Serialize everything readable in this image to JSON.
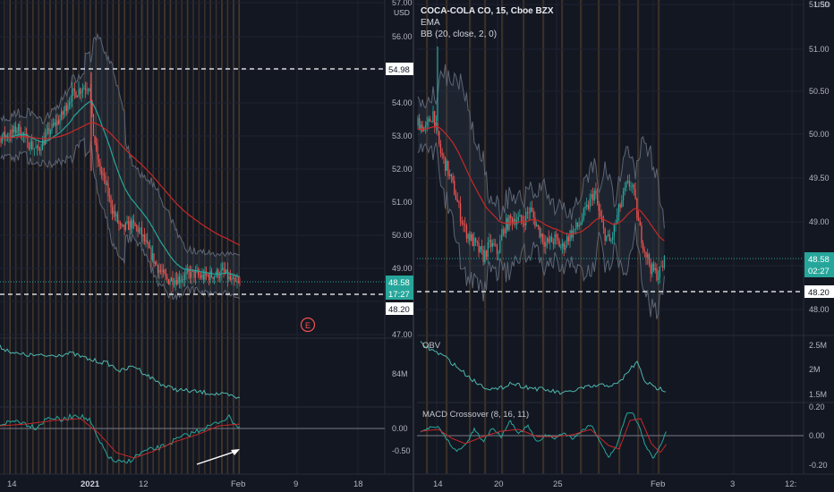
{
  "colors": {
    "bg": "#131722",
    "up": "#26a69a",
    "down": "#ef5350",
    "ema": "#c62828",
    "bb": "#7e8593",
    "grid": "#1f2330",
    "text": "#b2b5be",
    "obv": "#4db6ac",
    "macd": "#26a69a",
    "signal": "#c62828"
  },
  "left": {
    "currency": "USD",
    "price_axis": [
      "57.00",
      "56.00",
      "55.00",
      "54.00",
      "53.00",
      "52.00",
      "51.00",
      "50.00",
      "49.00",
      "48.00",
      "47.00"
    ],
    "marker_high": "54.98",
    "marker_last": "48.58",
    "marker_time": "17:27",
    "marker_low": "48.20",
    "earnings_label": "E",
    "obv_tick": "84M",
    "macd_ticks": [
      "0.00",
      "-0.50"
    ],
    "time_axis": [
      "14",
      "2021",
      "12",
      "Feb",
      "9",
      "18"
    ]
  },
  "right": {
    "title": "COCA-COLA CO, 15, Cboe BZX",
    "ema_label": "EMA",
    "bb_label": "BB (20, close, 2, 0)",
    "obv_label": "OBV",
    "macd_label": "MACD Crossover (8, 16, 11)",
    "currency": "USD",
    "price_axis": [
      "51.50",
      "51.00",
      "50.50",
      "50.00",
      "49.50",
      "49.00",
      "48.50",
      "48.00"
    ],
    "marker_last": "48.58",
    "marker_time": "02:27",
    "marker_low": "48.20",
    "obv_ticks": [
      "2.5M",
      "2M",
      "1.5M"
    ],
    "macd_ticks": [
      "0.20",
      "0.00",
      "-0.20"
    ],
    "time_axis": [
      "14",
      "20",
      "25",
      "Feb",
      "3",
      "12:"
    ]
  },
  "chart_data": [
    {
      "type": "line",
      "title": "",
      "ylabel": "USD",
      "ylim": [
        46.5,
        57
      ],
      "x": [
        "2021-01-07",
        "2021-01-12",
        "2021-01-17",
        "2021-01-22",
        "2021-01-27",
        "2021-02-01"
      ],
      "series": [
        {
          "name": "",
          "values": [
            53.1,
            54.2,
            53.2,
            50.5,
            49.1,
            48.58
          ]
        },
        {
          "name": "EMA",
          "values": [
            52.6,
            53.0,
            52.2,
            50.6,
            49.9,
            49.5
          ]
        }
      ],
      "reference_lines": [
        54.98,
        48.2
      ]
    },
    {
      "type": "line",
      "title": "COCA-COLA CO, 15, Cboe BZX",
      "ylabel": "USD",
      "ylim": [
        47.8,
        51.7
      ],
      "x": [
        "2021-01-13",
        "2021-01-15",
        "2021-01-18",
        "2021-01-20",
        "2021-01-22",
        "2021-01-25",
        "2021-01-27",
        "2021-01-29",
        "2021-02-01"
      ],
      "series": [
        {
          "name": "",
          "values": [
            50.1,
            50.2,
            49.5,
            48.7,
            49.1,
            48.7,
            49.2,
            49.5,
            48.58
          ]
        },
        {
          "name": "EMA",
          "values": [
            49.9,
            50.0,
            49.6,
            48.9,
            48.9,
            48.95,
            48.9,
            49.2,
            48.75
          ]
        }
      ],
      "reference_lines": [
        48.2
      ]
    }
  ]
}
